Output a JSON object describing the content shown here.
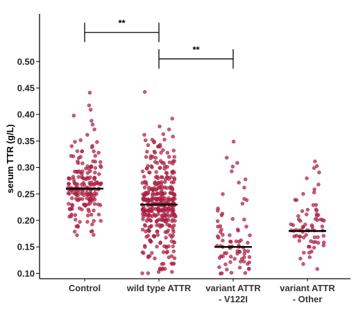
{
  "chart_data": {
    "type": "scatter",
    "ylabel": "serum TTR (g/L)",
    "xlabel": "",
    "ylim": [
      0.09,
      0.59
    ],
    "yticks": [
      0.1,
      0.15,
      0.2,
      0.25,
      0.3,
      0.35,
      0.4,
      0.45,
      0.5
    ],
    "ytick_labels": [
      "0.10",
      "0.15",
      "0.20",
      "0.25",
      "0.30",
      "0.35",
      "0.40",
      "0.45",
      "0.50"
    ],
    "grid": false,
    "point_color": "#b5254a",
    "categories": [
      {
        "lines": [
          "Control"
        ]
      },
      {
        "lines": [
          "wild type ATTR"
        ]
      },
      {
        "lines": [
          "variant ATTR",
          "- V122I"
        ]
      },
      {
        "lines": [
          "variant ATTR",
          "- Other"
        ]
      }
    ],
    "series": [
      {
        "median": 0.26,
        "values": [
          0.44,
          0.42,
          0.41,
          0.4,
          0.39,
          0.38,
          0.37,
          0.36,
          0.35,
          0.35,
          0.34,
          0.34,
          0.33,
          0.33,
          0.33,
          0.32,
          0.32,
          0.32,
          0.31,
          0.31,
          0.31,
          0.31,
          0.3,
          0.3,
          0.3,
          0.3,
          0.3,
          0.29,
          0.29,
          0.29,
          0.29,
          0.29,
          0.29,
          0.28,
          0.28,
          0.28,
          0.28,
          0.28,
          0.28,
          0.28,
          0.27,
          0.27,
          0.27,
          0.27,
          0.27,
          0.27,
          0.27,
          0.27,
          0.26,
          0.26,
          0.26,
          0.26,
          0.26,
          0.26,
          0.26,
          0.26,
          0.26,
          0.25,
          0.25,
          0.25,
          0.25,
          0.25,
          0.25,
          0.25,
          0.25,
          0.24,
          0.24,
          0.24,
          0.24,
          0.24,
          0.24,
          0.24,
          0.23,
          0.23,
          0.23,
          0.23,
          0.23,
          0.23,
          0.22,
          0.22,
          0.22,
          0.22,
          0.22,
          0.21,
          0.21,
          0.21,
          0.21,
          0.2,
          0.2,
          0.2,
          0.19,
          0.19,
          0.19,
          0.18,
          0.18,
          0.17,
          0.17,
          0.26,
          0.27,
          0.25,
          0.28,
          0.24,
          0.26,
          0.29,
          0.23,
          0.27,
          0.25,
          0.26,
          0.3,
          0.22,
          0.28,
          0.25,
          0.24,
          0.26,
          0.27,
          0.31,
          0.21,
          0.25,
          0.26,
          0.28,
          0.24,
          0.27,
          0.23,
          0.29,
          0.26,
          0.25,
          0.32,
          0.2,
          0.27,
          0.26,
          0.24,
          0.28,
          0.25,
          0.26,
          0.22,
          0.3,
          0.27,
          0.25,
          0.23,
          0.26,
          0.29,
          0.24,
          0.28,
          0.25,
          0.33,
          0.21,
          0.27,
          0.26,
          0.24,
          0.25,
          0.27,
          0.28,
          0.23,
          0.26,
          0.31,
          0.22,
          0.25,
          0.29,
          0.26,
          0.24,
          0.27,
          0.34,
          0.2,
          0.25,
          0.28,
          0.26,
          0.23,
          0.27,
          0.24,
          0.3,
          0.25,
          0.26,
          0.22,
          0.28,
          0.35,
          0.19,
          0.26,
          0.27,
          0.24,
          0.25,
          0.29,
          0.23,
          0.26,
          0.32,
          0.21,
          0.27,
          0.25,
          0.28,
          0.24,
          0.26,
          0.18,
          0.3,
          0.25,
          0.27,
          0.23,
          0.26,
          0.33
        ]
      },
      {
        "median": 0.23,
        "values": [
          0.44,
          0.39,
          0.38,
          0.37,
          0.36,
          0.36,
          0.35,
          0.35,
          0.35,
          0.34,
          0.34,
          0.34,
          0.33,
          0.33,
          0.33,
          0.33,
          0.32,
          0.32,
          0.32,
          0.32,
          0.31,
          0.31,
          0.31,
          0.31,
          0.31,
          0.3,
          0.3,
          0.3,
          0.3,
          0.3,
          0.3,
          0.29,
          0.29,
          0.29,
          0.29,
          0.29,
          0.29,
          0.28,
          0.28,
          0.28,
          0.28,
          0.28,
          0.28,
          0.28,
          0.27,
          0.27,
          0.27,
          0.27,
          0.27,
          0.27,
          0.27,
          0.26,
          0.26,
          0.26,
          0.26,
          0.26,
          0.26,
          0.26,
          0.26,
          0.25,
          0.25,
          0.25,
          0.25,
          0.25,
          0.25,
          0.25,
          0.25,
          0.25,
          0.24,
          0.24,
          0.24,
          0.24,
          0.24,
          0.24,
          0.24,
          0.24,
          0.24,
          0.24,
          0.23,
          0.23,
          0.23,
          0.23,
          0.23,
          0.23,
          0.23,
          0.23,
          0.23,
          0.23,
          0.23,
          0.22,
          0.22,
          0.22,
          0.22,
          0.22,
          0.22,
          0.22,
          0.22,
          0.22,
          0.22,
          0.21,
          0.21,
          0.21,
          0.21,
          0.21,
          0.21,
          0.21,
          0.21,
          0.21,
          0.2,
          0.2,
          0.2,
          0.2,
          0.2,
          0.2,
          0.2,
          0.2,
          0.19,
          0.19,
          0.19,
          0.19,
          0.19,
          0.19,
          0.19,
          0.18,
          0.18,
          0.18,
          0.18,
          0.18,
          0.18,
          0.17,
          0.17,
          0.17,
          0.17,
          0.17,
          0.16,
          0.16,
          0.16,
          0.16,
          0.15,
          0.15,
          0.15,
          0.15,
          0.14,
          0.14,
          0.14,
          0.13,
          0.13,
          0.13,
          0.12,
          0.12,
          0.11,
          0.11,
          0.1,
          0.1,
          0.1,
          0.23,
          0.24,
          0.22,
          0.25,
          0.23,
          0.21,
          0.24,
          0.26,
          0.22,
          0.23,
          0.2,
          0.25,
          0.24,
          0.23,
          0.27,
          0.21,
          0.22,
          0.24,
          0.23,
          0.19,
          0.25,
          0.22,
          0.26,
          0.23,
          0.24,
          0.21,
          0.28,
          0.22,
          0.23,
          0.2,
          0.24,
          0.25,
          0.22,
          0.23,
          0.18,
          0.26,
          0.24,
          0.21,
          0.23,
          0.22,
          0.29,
          0.24,
          0.2,
          0.23,
          0.25,
          0.22,
          0.17,
          0.24,
          0.23,
          0.27,
          0.21,
          0.22,
          0.24,
          0.26,
          0.19,
          0.23,
          0.25,
          0.22,
          0.3,
          0.16,
          0.24,
          0.23,
          0.21,
          0.25,
          0.22,
          0.28,
          0.2,
          0.24,
          0.23,
          0.15,
          0.26,
          0.22,
          0.24,
          0.21,
          0.31,
          0.23,
          0.25,
          0.19,
          0.22,
          0.24,
          0.14,
          0.27,
          0.23,
          0.22,
          0.2,
          0.25,
          0.32,
          0.24,
          0.21,
          0.23,
          0.13,
          0.26,
          0.22,
          0.24,
          0.18,
          0.23,
          0.29,
          0.21,
          0.25,
          0.12,
          0.24,
          0.22,
          0.27,
          0.2,
          0.23,
          0.33,
          0.24,
          0.17,
          0.22,
          0.25,
          0.11,
          0.23,
          0.28,
          0.21,
          0.24,
          0.26,
          0.16,
          0.22,
          0.23,
          0.34,
          0.2,
          0.24,
          0.25,
          0.19,
          0.22,
          0.3,
          0.23,
          0.15,
          0.24,
          0.21,
          0.27,
          0.22,
          0.35,
          0.18,
          0.23,
          0.25,
          0.14,
          0.24,
          0.22,
          0.26,
          0.2,
          0.23,
          0.31,
          0.21,
          0.17,
          0.24,
          0.22,
          0.28,
          0.13,
          0.25,
          0.23,
          0.19,
          0.22,
          0.24,
          0.32,
          0.21,
          0.26,
          0.16,
          0.23,
          0.22,
          0.12,
          0.25,
          0.24,
          0.29,
          0.2,
          0.23,
          0.18,
          0.22,
          0.27,
          0.24,
          0.33,
          0.21,
          0.15,
          0.23,
          0.25,
          0.22,
          0.11,
          0.26,
          0.24,
          0.19,
          0.23,
          0.3,
          0.21,
          0.22,
          0.17,
          0.24,
          0.28,
          0.23,
          0.14,
          0.25,
          0.22,
          0.2,
          0.34,
          0.24,
          0.26,
          0.13,
          0.23,
          0.21,
          0.31,
          0.22,
          0.18,
          0.25,
          0.24,
          0.27,
          0.16,
          0.23,
          0.1,
          0.22,
          0.29,
          0.24,
          0.2,
          0.26,
          0.21,
          0.35,
          0.23,
          0.15,
          0.25,
          0.22,
          0.19,
          0.24,
          0.32,
          0.12,
          0.23,
          0.28,
          0.21,
          0.26,
          0.17,
          0.22,
          0.24,
          0.33,
          0.2,
          0.25,
          0.14,
          0.23,
          0.3,
          0.22,
          0.18,
          0.24,
          0.27,
          0.21,
          0.11,
          0.25,
          0.23,
          0.36,
          0.19,
          0.26,
          0.22,
          0.16,
          0.24,
          0.31,
          0.2,
          0.23,
          0.13
        ]
      },
      {
        "median": 0.15,
        "values": [
          0.35,
          0.32,
          0.31,
          0.3,
          0.29,
          0.28,
          0.27,
          0.26,
          0.25,
          0.24,
          0.24,
          0.23,
          0.22,
          0.22,
          0.21,
          0.21,
          0.2,
          0.2,
          0.19,
          0.19,
          0.18,
          0.18,
          0.18,
          0.17,
          0.17,
          0.17,
          0.16,
          0.16,
          0.16,
          0.16,
          0.15,
          0.15,
          0.15,
          0.15,
          0.15,
          0.14,
          0.14,
          0.14,
          0.14,
          0.14,
          0.13,
          0.13,
          0.13,
          0.13,
          0.13,
          0.12,
          0.12,
          0.12,
          0.12,
          0.11,
          0.11,
          0.11,
          0.11,
          0.1,
          0.1,
          0.1,
          0.15,
          0.14,
          0.16,
          0.13,
          0.15,
          0.17,
          0.12,
          0.14,
          0.16,
          0.15,
          0.13,
          0.18,
          0.11,
          0.14,
          0.15,
          0.16,
          0.12,
          0.19,
          0.14,
          0.13,
          0.17,
          0.15,
          0.1,
          0.2
        ]
      },
      {
        "median": 0.18,
        "values": [
          0.31,
          0.3,
          0.3,
          0.29,
          0.28,
          0.27,
          0.26,
          0.25,
          0.25,
          0.24,
          0.23,
          0.23,
          0.22,
          0.22,
          0.22,
          0.21,
          0.21,
          0.21,
          0.2,
          0.2,
          0.2,
          0.2,
          0.19,
          0.19,
          0.19,
          0.19,
          0.18,
          0.18,
          0.18,
          0.18,
          0.18,
          0.17,
          0.17,
          0.17,
          0.17,
          0.17,
          0.16,
          0.16,
          0.16,
          0.16,
          0.15,
          0.15,
          0.15,
          0.14,
          0.14,
          0.13,
          0.13,
          0.12,
          0.11,
          0.18,
          0.19,
          0.17,
          0.2,
          0.18,
          0.16,
          0.21,
          0.19,
          0.17,
          0.18,
          0.2,
          0.15,
          0.22,
          0.18,
          0.19,
          0.16,
          0.24,
          0.17,
          0.18,
          0.2,
          0.14,
          0.21,
          0.19,
          0.18,
          0.17
        ]
      }
    ],
    "significance": [
      {
        "from": 0,
        "to": 1,
        "y": 0.555,
        "label": "**"
      },
      {
        "from": 1,
        "to": 2,
        "y": 0.505,
        "label": "**"
      }
    ]
  }
}
